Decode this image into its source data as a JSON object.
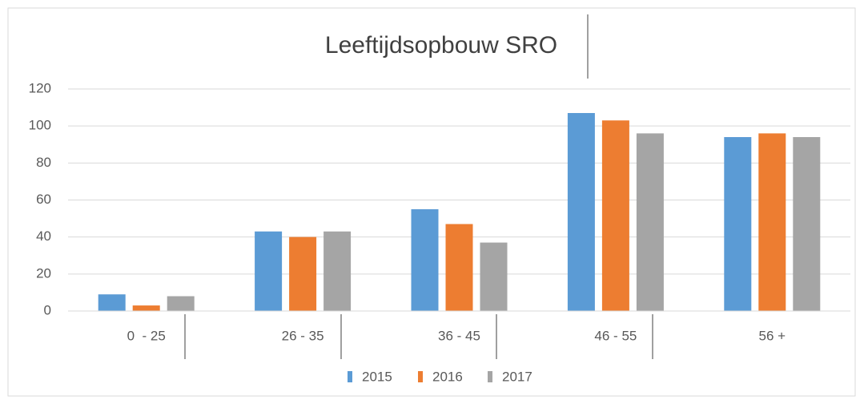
{
  "chart_data": {
    "type": "bar",
    "title": "Leeftijdsopbouw SRO",
    "categories": [
      "0  - 25",
      "26 - 35",
      "36 - 45",
      "46 - 55",
      "56 +"
    ],
    "series": [
      {
        "name": "2015",
        "color": "#5b9bd5",
        "values": [
          9,
          43,
          55,
          107,
          94
        ]
      },
      {
        "name": "2016",
        "color": "#ed7d31",
        "values": [
          3,
          40,
          47,
          103,
          96
        ]
      },
      {
        "name": "2017",
        "color": "#a5a5a5",
        "values": [
          8,
          43,
          37,
          96,
          94
        ]
      }
    ],
    "ylim": [
      0,
      120
    ],
    "yticks": [
      0,
      20,
      40,
      60,
      80,
      100,
      120
    ],
    "grid": true,
    "legend": "bottom"
  }
}
